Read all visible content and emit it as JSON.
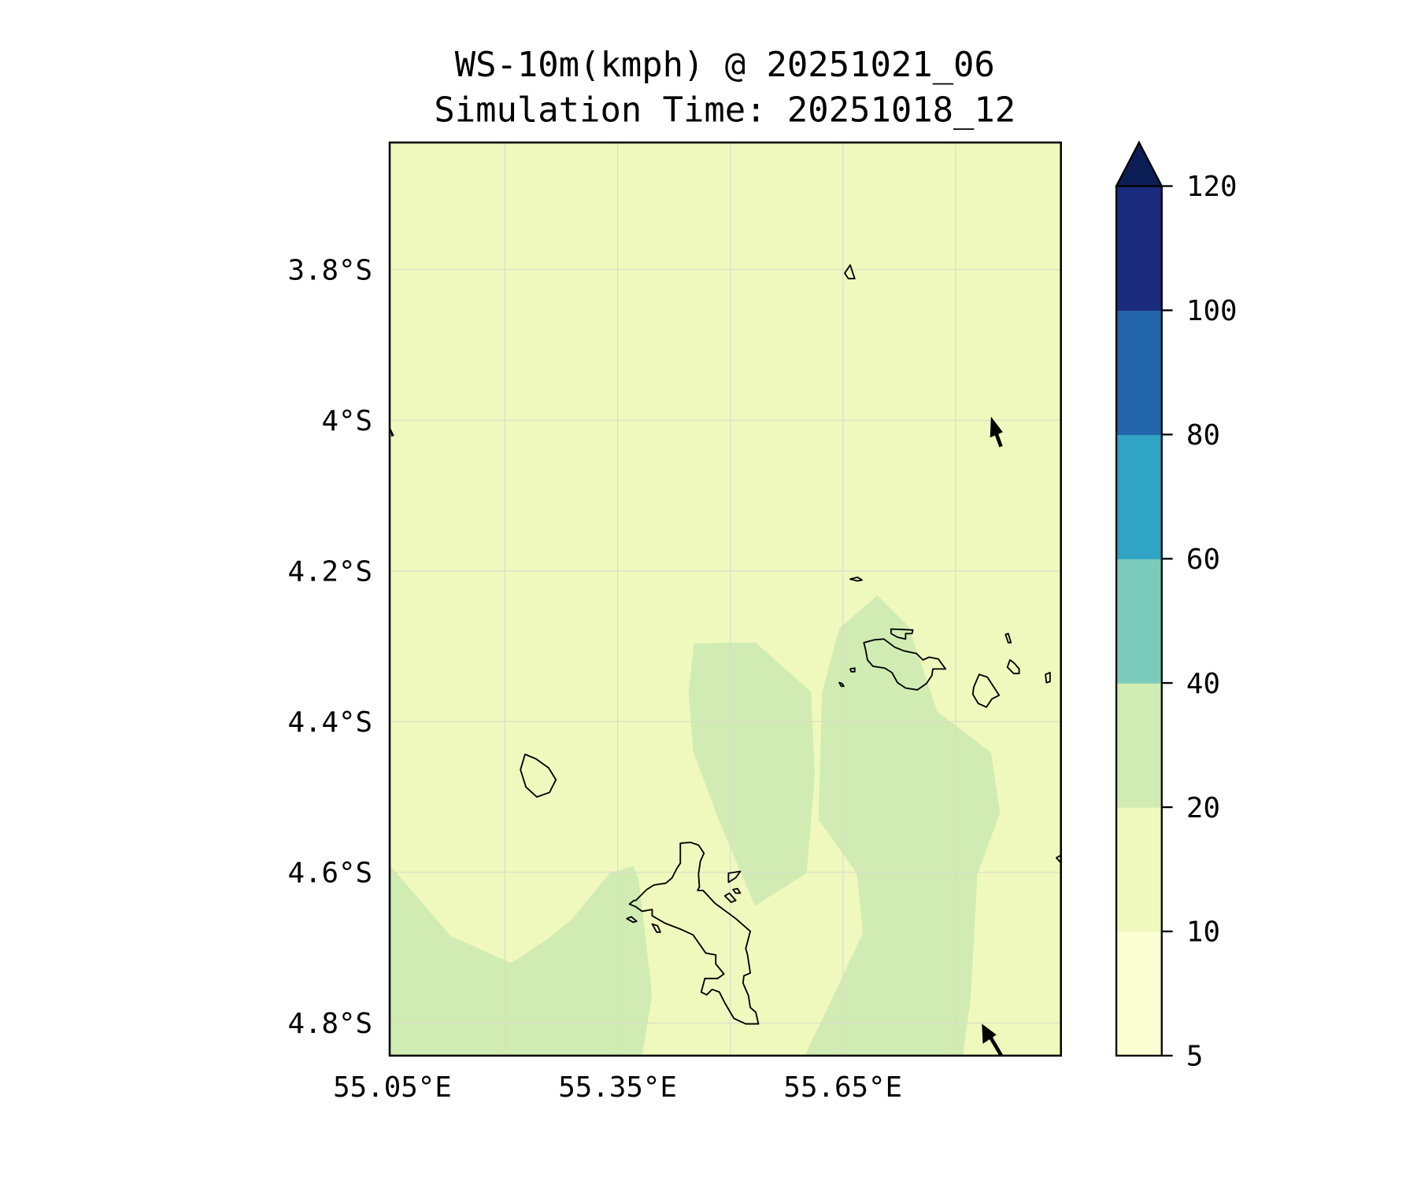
{
  "title": {
    "line1": "WS-10m(kmph) @ 20251021_06",
    "line2": "Simulation Time: 20251018_12"
  },
  "chart_data": {
    "type": "heatmap",
    "subtype": "filled-contour-map",
    "variable": "WS-10m(kmph)",
    "valid_time": "20251021_06",
    "simulation_time": "20251018_12",
    "lon_ticks": [
      55.05,
      55.35,
      55.65
    ],
    "lon_tick_labels": [
      "55.05°E",
      "55.35°E",
      "55.65°E"
    ],
    "lon_gridlines": [
      55.2,
      55.35,
      55.5,
      55.65,
      55.8
    ],
    "lat_ticks": [
      3.8,
      4.0,
      4.2,
      4.4,
      4.6,
      4.8
    ],
    "lat_tick_labels": [
      "3.8°S",
      "4°S",
      "4.2°S",
      "4.4°S",
      "4.6°S",
      "4.8°S"
    ],
    "lon_range": [
      55.05,
      55.94
    ],
    "lat_range_south": [
      3.63,
      4.845
    ],
    "grid": true,
    "colorbar": {
      "levels": [
        5,
        10,
        20,
        40,
        60,
        80,
        100,
        120
      ],
      "tick_labels": [
        "5",
        "10",
        "20",
        "40",
        "60",
        "80",
        "100",
        "120"
      ],
      "colors": [
        "#fbfed2",
        "#f0f9bd",
        "#d1ecb3",
        "#7bcbbb",
        "#2fa4c4",
        "#2264a9",
        "#1b2b7d"
      ],
      "extend_color": "#0b1e55",
      "extend": "max",
      "placement": "right"
    },
    "field_summary": "Mostly 10-20 kmph across domain with 20-40 kmph patches in south-west, centre and east; wind vectors point north-west",
    "background_color": "#f0f9bd",
    "patch_color": "#d1ecb3"
  }
}
